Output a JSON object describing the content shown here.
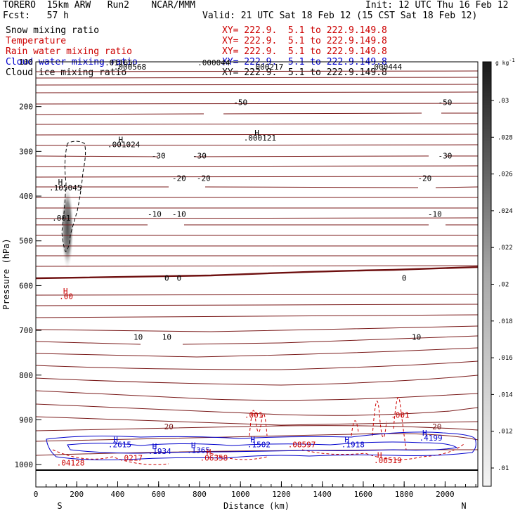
{
  "header": {
    "model": "TORERO  15km ARW   Run2    NCAR/MMM",
    "init": "Init: 12 UTC Thu 16 Feb 12",
    "fcst": "Fcst:   57 h",
    "valid": "Valid: 21 UTC Sat 18 Feb 12 (15 CST Sat 18 Feb 12)",
    "xy": "XY= 222.9.  5.1 to 222.9.149.8"
  },
  "fields": [
    {
      "name": "Snow mixing ratio",
      "color": "#000000"
    },
    {
      "name": "Temperature",
      "color": "#cc0000"
    },
    {
      "name": "Rain water mixing ratio",
      "color": "#cc0000"
    },
    {
      "name": "Cloud water mixing ratio",
      "color": "#0000cc"
    },
    {
      "name": "Cloud ice mixing ratio",
      "color": "#000000"
    }
  ],
  "chart_data": {
    "type": "contour",
    "xlabel": "Distance (km)",
    "ylabel": "Pressure (hPa)",
    "x_ticks": [
      0,
      200,
      400,
      600,
      800,
      1000,
      1200,
      1400,
      1600,
      1800,
      2000
    ],
    "y_ticks": [
      100,
      200,
      300,
      400,
      500,
      600,
      700,
      800,
      900,
      1000
    ],
    "xlim": [
      0,
      2160
    ],
    "ylim": [
      1050,
      100
    ],
    "x_end_labels": {
      "left": "S",
      "right": "N"
    },
    "colorbar": {
      "unit": "g kg",
      "unit_exp": "-1",
      "ticks": [
        ".01",
        ".012",
        ".014",
        ".016",
        ".018",
        ".02",
        ".022",
        ".024",
        ".026",
        ".028",
        ".03"
      ]
    },
    "temperature_contours": [
      {
        "label": "-50",
        "pressure": 190
      },
      {
        "label": "-30",
        "pressure": 310
      },
      {
        "label": "-20",
        "pressure": 360
      },
      {
        "label": "-10",
        "pressure": 440
      },
      {
        "label": "0",
        "pressure": 583
      },
      {
        "label": "10",
        "pressure": 715
      },
      {
        "label": "20",
        "pressure": 915
      }
    ],
    "annotations": [
      {
        "text": "H",
        "x": 415,
        "p": 280,
        "color": "#000000"
      },
      {
        "text": ".001024",
        "x": 430,
        "p": 291,
        "color": "#000000"
      },
      {
        "text": "H",
        "x": 1080,
        "p": 265,
        "color": "#000000"
      },
      {
        "text": ".000121",
        "x": 1095,
        "p": 276,
        "color": "#000000"
      },
      {
        "text": "H",
        "x": 120,
        "p": 375,
        "color": "#000000"
      },
      {
        "text": ".105045",
        "x": 145,
        "p": 387,
        "color": "#000000"
      },
      {
        "text": ".001",
        "x": 125,
        "p": 455,
        "color": "#000000"
      },
      {
        "text": "H",
        "x": 145,
        "p": 618,
        "color": "#cc0000"
      },
      {
        "text": ".00",
        "x": 148,
        "p": 630,
        "color": "#cc0000"
      },
      {
        "text": ".000568",
        "x": 460,
        "p": 117,
        "color": "#000000"
      },
      {
        "text": ".01165",
        "x": 405,
        "p": 108,
        "color": "#000000"
      },
      {
        "text": ".000044",
        "x": 870,
        "p": 108,
        "color": "#000000"
      },
      {
        "text": ".000217",
        "x": 1130,
        "p": 117,
        "color": "#000000"
      },
      {
        "text": ".000444",
        "x": 1710,
        "p": 117,
        "color": "#000000"
      },
      {
        "text": "H",
        "x": 390,
        "p": 950,
        "color": "#0000cc"
      },
      {
        "text": ".2615",
        "x": 410,
        "p": 961,
        "color": "#0000cc"
      },
      {
        "text": "H",
        "x": 580,
        "p": 965,
        "color": "#0000cc"
      },
      {
        "text": ".1934",
        "x": 605,
        "p": 976,
        "color": "#0000cc"
      },
      {
        "text": "H",
        "x": 770,
        "p": 963,
        "color": "#0000cc"
      },
      {
        "text": ".1365",
        "x": 795,
        "p": 974,
        "color": "#0000cc"
      },
      {
        "text": "H",
        "x": 1060,
        "p": 950,
        "color": "#0000cc"
      },
      {
        "text": ".1502",
        "x": 1090,
        "p": 961,
        "color": "#0000cc"
      },
      {
        "text": "H",
        "x": 1520,
        "p": 950,
        "color": "#0000cc"
      },
      {
        "text": ".1918",
        "x": 1550,
        "p": 961,
        "color": "#0000cc"
      },
      {
        "text": "H",
        "x": 1900,
        "p": 935,
        "color": "#0000cc"
      },
      {
        "text": ".4199",
        "x": 1930,
        "p": 946,
        "color": "#0000cc"
      },
      {
        "text": ".001",
        "x": 1065,
        "p": 895,
        "color": "#cc0000"
      },
      {
        "text": ".001",
        "x": 1780,
        "p": 895,
        "color": "#cc0000"
      },
      {
        "text": ".08597",
        "x": 1300,
        "p": 961,
        "color": "#cc0000"
      },
      {
        "text": ".04128",
        "x": 170,
        "p": 1002,
        "color": "#cc0000"
      },
      {
        "text": ".0217",
        "x": 465,
        "p": 991,
        "color": "#cc0000"
      },
      {
        "text": ".06358",
        "x": 870,
        "p": 991,
        "color": "#cc0000"
      },
      {
        "text": ".06519",
        "x": 1720,
        "p": 997,
        "color": "#cc0000"
      },
      {
        "text": "H",
        "x": 1680,
        "p": 985,
        "color": "#cc0000"
      },
      {
        "text": "H",
        "x": 845,
        "p": 978,
        "color": "#cc0000"
      }
    ]
  }
}
